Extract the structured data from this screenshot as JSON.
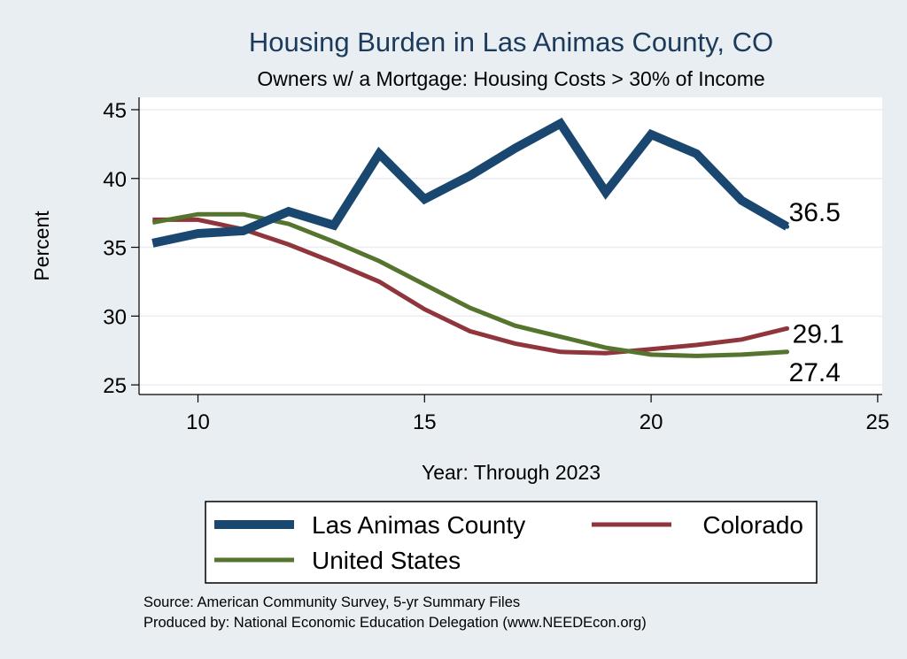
{
  "chart_data": {
    "type": "line",
    "title": "Housing Burden in Las Animas County, CO",
    "subtitle": "Owners w/ a Mortgage: Housing Costs > 30% of Income",
    "xlabel": "Year: Through 2023",
    "ylabel": "Percent",
    "xlim": [
      8.7,
      25.1
    ],
    "ylim": [
      24.3,
      45.9
    ],
    "xticks": [
      10,
      15,
      20,
      25
    ],
    "yticks": [
      25,
      30,
      35,
      40,
      45
    ],
    "grid": true,
    "legend_position": "bottom",
    "x": [
      9,
      10,
      11,
      12,
      13,
      14,
      15,
      16,
      17,
      18,
      19,
      20,
      21,
      22,
      23
    ],
    "series": [
      {
        "name": "Las Animas County",
        "color": "#1a476f",
        "values": [
          35.3,
          36.0,
          36.2,
          37.6,
          36.6,
          41.8,
          38.5,
          40.2,
          42.2,
          44.0,
          39.0,
          43.2,
          41.8,
          38.4,
          36.5
        ],
        "end_label": "36.5"
      },
      {
        "name": "Colorado",
        "color": "#90353b",
        "values": [
          37.0,
          37.0,
          36.3,
          35.2,
          33.9,
          32.5,
          30.5,
          28.9,
          28.0,
          27.4,
          27.3,
          27.6,
          27.9,
          28.3,
          29.1
        ],
        "end_label": "29.1"
      },
      {
        "name": "United States",
        "color": "#55752f",
        "values": [
          36.8,
          37.4,
          37.4,
          36.7,
          35.4,
          34.0,
          32.3,
          30.6,
          29.3,
          28.5,
          27.7,
          27.2,
          27.1,
          27.2,
          27.4
        ],
        "end_label": "27.4"
      }
    ]
  },
  "source_note": "Source: American Community Survey, 5-yr Summary Files",
  "producer_note": "Produced by: National Economic Education Delegation (www.NEEDEcon.org)"
}
